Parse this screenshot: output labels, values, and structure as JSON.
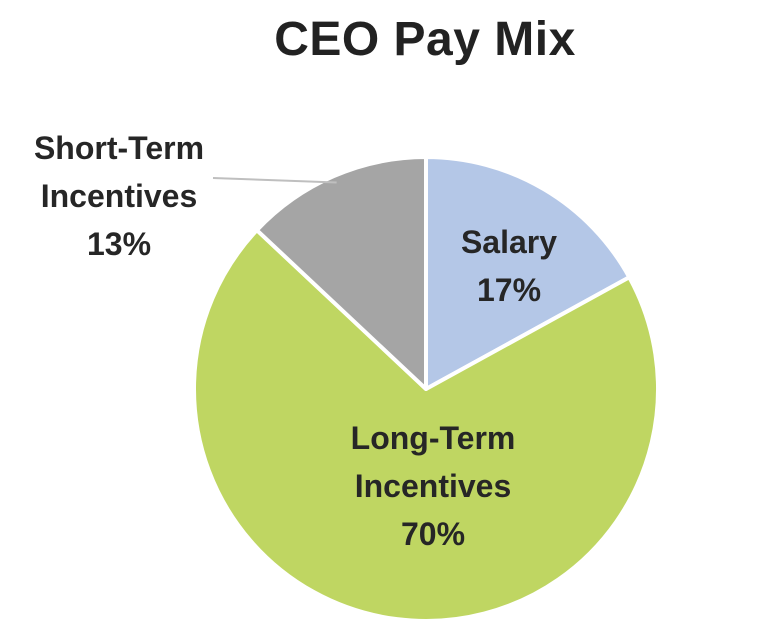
{
  "chart_data": {
    "type": "pie",
    "title": "CEO Pay Mix",
    "slices": [
      {
        "label_lines": [
          "Salary"
        ],
        "value": 17,
        "value_label": "17%",
        "color": "#b4c7e7"
      },
      {
        "label_lines": [
          "Long-Term",
          "Incentives"
        ],
        "value": 70,
        "value_label": "70%",
        "color": "#bfd662"
      },
      {
        "label_lines": [
          "Short-Term",
          "Incentives"
        ],
        "value": 13,
        "value_label": "13%",
        "color": "#a5a5a5"
      }
    ],
    "start_angle_deg": 0,
    "direction": "clockwise",
    "slice_border_color": "#ffffff",
    "leader_line_color": "#bfbfbf"
  }
}
